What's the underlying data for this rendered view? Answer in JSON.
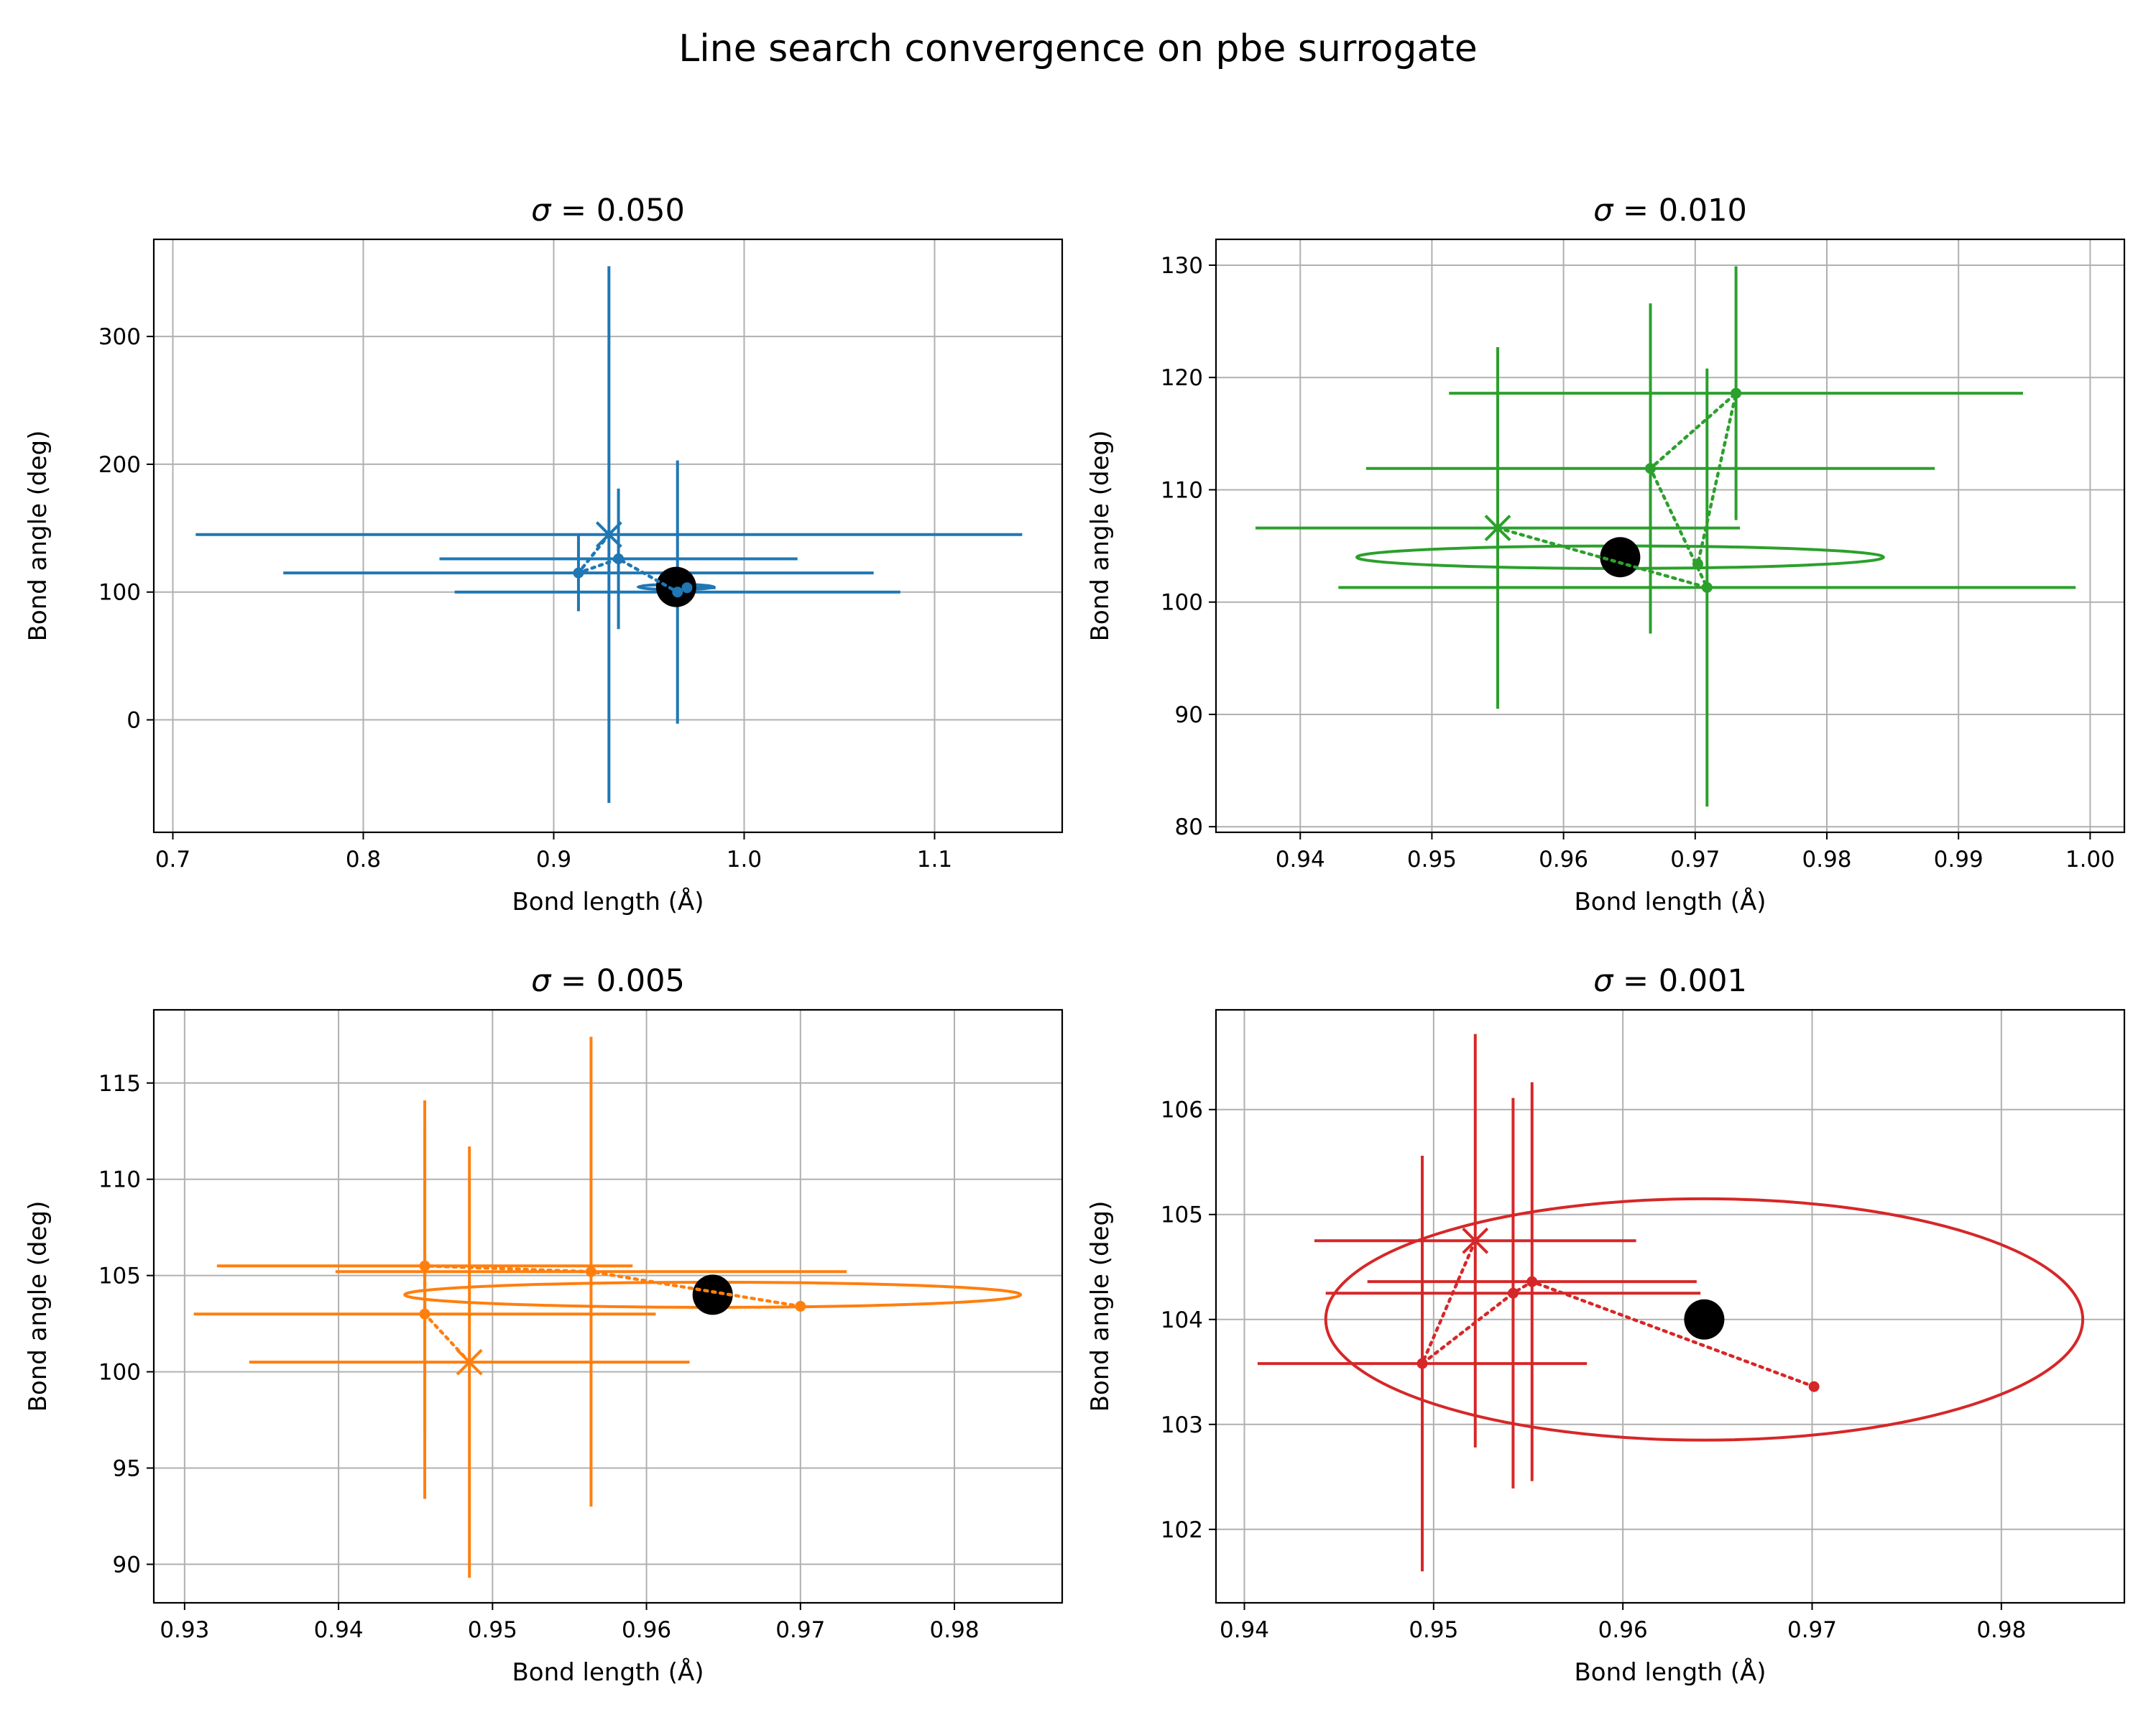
{
  "figure": {
    "title": "Line search convergence on pbe surrogate",
    "ellipse_color": "",
    "target_color": "#000000"
  },
  "chart_data": [
    {
      "type": "scatter",
      "title": "σ = 0.050",
      "title_prefix": "σ",
      "title_value": " = 0.050",
      "color": "#1f77b4",
      "xlabel": "Bond length (Å)",
      "ylabel": "Bond angle (deg)",
      "xlim": [
        0.69,
        1.167
      ],
      "ylim": [
        -88,
        376
      ],
      "xticks": [
        0.7,
        0.8,
        0.9,
        1.0,
        1.1
      ],
      "xtick_labels": [
        "0.7",
        "0.8",
        "0.9",
        "1.0",
        "1.1"
      ],
      "yticks": [
        0,
        100,
        200,
        300
      ],
      "ytick_labels": [
        "0",
        "100",
        "200",
        "300"
      ],
      "grid": true,
      "target": {
        "x": 0.9643,
        "y": 104.0
      },
      "ellipse": {
        "cx": 0.9643,
        "cy": 104.0,
        "rx": 0.02,
        "ry": 2.0
      },
      "start": {
        "x": 0.97,
        "y": 103.4
      },
      "points": [
        {
          "x": 0.929,
          "y": 145,
          "xerr": 0.217,
          "yerr": 210,
          "marker": "x"
        },
        {
          "x": 0.913,
          "y": 115,
          "xerr": 0.155,
          "yerr": 30,
          "marker": "dot"
        },
        {
          "x": 0.934,
          "y": 126,
          "xerr": 0.094,
          "yerr": 55,
          "marker": "dot"
        },
        {
          "x": 0.965,
          "y": 100,
          "xerr": 0.117,
          "yerr": 103,
          "marker": "dot"
        },
        {
          "x": 0.97,
          "y": 103.4,
          "xerr": 0.015,
          "yerr": 2,
          "marker": "dot"
        }
      ],
      "path": [
        {
          "x": 0.929,
          "y": 145
        },
        {
          "x": 0.913,
          "y": 115
        },
        {
          "x": 0.934,
          "y": 126
        },
        {
          "x": 0.965,
          "y": 100
        },
        {
          "x": 0.97,
          "y": 103.4
        }
      ]
    },
    {
      "type": "scatter",
      "title": "σ = 0.010",
      "title_prefix": "σ",
      "title_value": " = 0.010",
      "color": "#2ca02c",
      "xlabel": "Bond length (Å)",
      "ylabel": "Bond angle (deg)",
      "xlim": [
        0.9336,
        1.0026
      ],
      "ylim": [
        79.5,
        132.3
      ],
      "xticks": [
        0.94,
        0.95,
        0.96,
        0.97,
        0.98,
        0.99,
        1.0
      ],
      "xtick_labels": [
        "0.94",
        "0.95",
        "0.96",
        "0.97",
        "0.98",
        "0.99",
        "1.00"
      ],
      "yticks": [
        80,
        90,
        100,
        110,
        120,
        130
      ],
      "ytick_labels": [
        "80",
        "90",
        "100",
        "110",
        "120",
        "130"
      ],
      "grid": true,
      "target": {
        "x": 0.9643,
        "y": 104.0
      },
      "ellipse": {
        "cx": 0.9643,
        "cy": 104.0,
        "rx": 0.02,
        "ry": 1.0
      },
      "start": {
        "x": 0.9702,
        "y": 103.4
      },
      "points": [
        {
          "x": 0.955,
          "y": 106.6,
          "xerr": 0.0184,
          "yerr": 16.1,
          "marker": "x"
        },
        {
          "x": 0.9709,
          "y": 101.3,
          "xerr": 0.028,
          "yerr": 19.5,
          "marker": "dot"
        },
        {
          "x": 0.9666,
          "y": 111.9,
          "xerr": 0.0216,
          "yerr": 14.7,
          "marker": "dot"
        },
        {
          "x": 0.9731,
          "y": 118.6,
          "xerr": 0.0218,
          "yerr": 11.3,
          "marker": "dot"
        },
        {
          "x": 0.9702,
          "y": 103.4,
          "xerr": 0,
          "yerr": 0,
          "marker": "dot"
        }
      ],
      "path": [
        {
          "x": 0.955,
          "y": 106.6
        },
        {
          "x": 0.9709,
          "y": 101.3
        },
        {
          "x": 0.9666,
          "y": 111.9
        },
        {
          "x": 0.9731,
          "y": 118.6
        },
        {
          "x": 0.9702,
          "y": 103.4
        }
      ]
    },
    {
      "type": "scatter",
      "title": "σ = 0.005",
      "title_prefix": "σ",
      "title_value": " = 0.005",
      "color": "#ff7f0e",
      "xlabel": "Bond length (Å)",
      "ylabel": "Bond angle (deg)",
      "xlim": [
        0.928,
        0.987
      ],
      "ylim": [
        88.0,
        118.8
      ],
      "xticks": [
        0.93,
        0.94,
        0.95,
        0.96,
        0.97,
        0.98
      ],
      "xtick_labels": [
        "0.93",
        "0.94",
        "0.95",
        "0.96",
        "0.97",
        "0.98"
      ],
      "yticks": [
        90,
        95,
        100,
        105,
        110,
        115
      ],
      "ytick_labels": [
        "90",
        "95",
        "100",
        "105",
        "110",
        "115"
      ],
      "grid": true,
      "target": {
        "x": 0.9643,
        "y": 104.0
      },
      "ellipse": {
        "cx": 0.9643,
        "cy": 104.0,
        "rx": 0.02,
        "ry": 0.65
      },
      "start": {
        "x": 0.97,
        "y": 103.4
      },
      "points": [
        {
          "x": 0.9485,
          "y": 100.5,
          "xerr": 0.0143,
          "yerr": 11.2,
          "marker": "x"
        },
        {
          "x": 0.9456,
          "y": 103.0,
          "xerr": 0.015,
          "yerr": 9.6,
          "marker": "dot"
        },
        {
          "x": 0.9456,
          "y": 105.5,
          "xerr": 0.0135,
          "yerr": 8.6,
          "marker": "dot"
        },
        {
          "x": 0.9564,
          "y": 105.2,
          "xerr": 0.0166,
          "yerr": 12.2,
          "marker": "dot"
        },
        {
          "x": 0.97,
          "y": 103.4,
          "xerr": 0,
          "yerr": 0,
          "marker": "dot"
        }
      ],
      "path": [
        {
          "x": 0.9485,
          "y": 100.5
        },
        {
          "x": 0.9456,
          "y": 103.0
        },
        {
          "x": 0.9456,
          "y": 105.5
        },
        {
          "x": 0.9564,
          "y": 105.2
        },
        {
          "x": 0.97,
          "y": 103.4
        }
      ]
    },
    {
      "type": "scatter",
      "title": "σ = 0.001",
      "title_prefix": "σ",
      "title_value": " = 0.001",
      "color": "#d62728",
      "xlabel": "Bond length (Å)",
      "ylabel": "Bond angle (deg)",
      "xlim": [
        0.9385,
        0.9865
      ],
      "ylim": [
        101.3,
        106.95
      ],
      "xticks": [
        0.94,
        0.95,
        0.96,
        0.97,
        0.98
      ],
      "xtick_labels": [
        "0.94",
        "0.95",
        "0.96",
        "0.97",
        "0.98"
      ],
      "yticks": [
        102,
        103,
        104,
        105,
        106
      ],
      "ytick_labels": [
        "102",
        "103",
        "104",
        "105",
        "106"
      ],
      "grid": true,
      "target": {
        "x": 0.9643,
        "y": 104.0
      },
      "ellipse": {
        "cx": 0.9643,
        "cy": 104.0,
        "rx": 0.02,
        "ry": 1.15
      },
      "start": {
        "x": 0.9701,
        "y": 103.36
      },
      "points": [
        {
          "x": 0.9522,
          "y": 104.75,
          "xerr": 0.0085,
          "yerr": 1.97,
          "marker": "x"
        },
        {
          "x": 0.9494,
          "y": 103.58,
          "xerr": 0.0087,
          "yerr": 1.98,
          "marker": "dot"
        },
        {
          "x": 0.9542,
          "y": 104.25,
          "xerr": 0.0099,
          "yerr": 1.86,
          "marker": "dot"
        },
        {
          "x": 0.9552,
          "y": 104.36,
          "xerr": 0.0087,
          "yerr": 1.9,
          "marker": "dot"
        },
        {
          "x": 0.9701,
          "y": 103.36,
          "xerr": 0,
          "yerr": 0,
          "marker": "dot"
        }
      ],
      "path": [
        {
          "x": 0.9522,
          "y": 104.75
        },
        {
          "x": 0.9494,
          "y": 103.58
        },
        {
          "x": 0.9542,
          "y": 104.25
        },
        {
          "x": 0.9552,
          "y": 104.36
        },
        {
          "x": 0.9701,
          "y": 103.36
        }
      ]
    }
  ]
}
